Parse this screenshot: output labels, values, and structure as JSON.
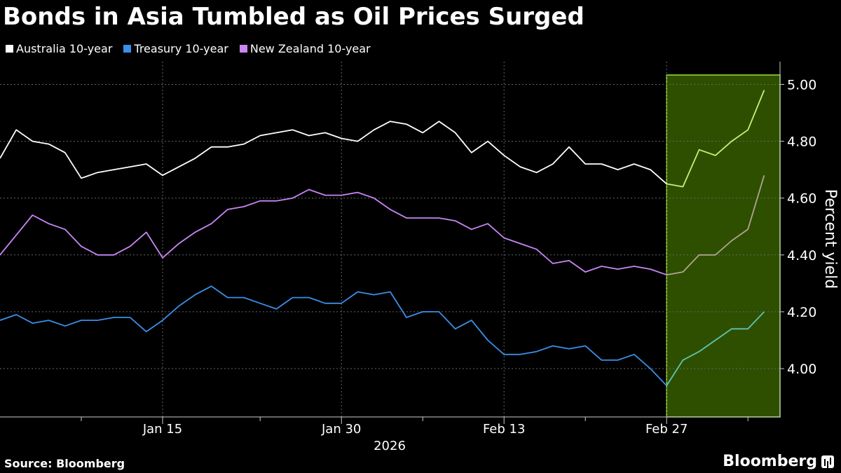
{
  "header": {
    "title": "Bonds in Asia Tumbled as Oil Prices Surged"
  },
  "footer": {
    "source": "Source: Bloomberg",
    "brand": "Bloomberg"
  },
  "chart_data": {
    "type": "line",
    "ylabel": "Percent yield",
    "xlabel": "2026",
    "ylim": [
      3.83,
      5.08
    ],
    "yticks": [
      "4.00",
      "4.20",
      "4.40",
      "4.60",
      "4.80",
      "5.00"
    ],
    "xticks": [
      "Jan 15",
      "Jan 30",
      "Feb 13",
      "Feb 27"
    ],
    "grid": true,
    "legend": "top-left",
    "highlight": {
      "from_index": 41,
      "to_index": 48,
      "color": "#2f4f00",
      "border": "#9be03a"
    },
    "series": [
      {
        "name": "Australia 10-year",
        "color": "#ffffff",
        "highlight_color": "#c8f07a",
        "values": [
          4.74,
          4.84,
          4.8,
          4.79,
          4.76,
          4.67,
          4.69,
          4.7,
          4.71,
          4.72,
          4.68,
          4.71,
          4.74,
          4.78,
          4.78,
          4.79,
          4.82,
          4.83,
          4.84,
          4.82,
          4.83,
          4.81,
          4.8,
          4.84,
          4.87,
          4.86,
          4.83,
          4.87,
          4.83,
          4.76,
          4.8,
          4.75,
          4.71,
          4.69,
          4.72,
          4.78,
          4.72,
          4.72,
          4.7,
          4.72,
          4.7,
          4.65,
          4.64,
          4.77,
          4.75,
          4.8,
          4.84,
          4.98
        ]
      },
      {
        "name": "Treasury 10-year",
        "color": "#3a8fe8",
        "highlight_color": "#5ec4b0",
        "values": [
          4.17,
          4.19,
          4.16,
          4.17,
          4.15,
          4.17,
          4.17,
          4.18,
          4.18,
          4.13,
          4.17,
          4.22,
          4.26,
          4.29,
          4.25,
          4.25,
          4.23,
          4.21,
          4.25,
          4.25,
          4.23,
          4.23,
          4.27,
          4.26,
          4.27,
          4.18,
          4.2,
          4.2,
          4.14,
          4.17,
          4.1,
          4.05,
          4.05,
          4.06,
          4.08,
          4.07,
          4.08,
          4.03,
          4.03,
          4.05,
          4.0,
          3.94,
          4.03,
          4.06,
          4.1,
          4.14,
          4.14,
          4.2
        ]
      },
      {
        "name": "New Zealand 10-year",
        "color": "#c986f5",
        "highlight_color": "#b0a490",
        "values": [
          4.4,
          4.47,
          4.54,
          4.51,
          4.49,
          4.43,
          4.4,
          4.4,
          4.43,
          4.48,
          4.39,
          4.44,
          4.48,
          4.51,
          4.56,
          4.57,
          4.59,
          4.59,
          4.6,
          4.63,
          4.61,
          4.61,
          4.62,
          4.6,
          4.56,
          4.53,
          4.53,
          4.53,
          4.52,
          4.49,
          4.51,
          4.46,
          4.44,
          4.42,
          4.37,
          4.38,
          4.34,
          4.36,
          4.35,
          4.36,
          4.35,
          4.33,
          4.34,
          4.4,
          4.4,
          4.45,
          4.49,
          4.68
        ]
      }
    ]
  }
}
